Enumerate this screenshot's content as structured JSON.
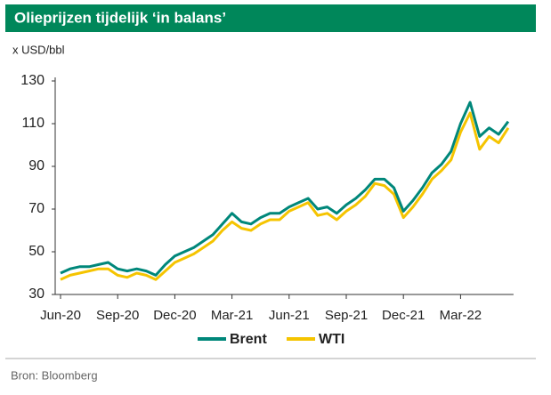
{
  "chart_data": {
    "type": "line",
    "title": "Olieprijzen tijdelijk ‘in balans’",
    "y_label": "x USD/bbl",
    "source": "Bron: Bloomberg",
    "categories": [
      "Jun-20",
      null,
      null,
      null,
      null,
      null,
      "Sep-20",
      null,
      null,
      null,
      null,
      null,
      "Dec-20",
      null,
      null,
      null,
      null,
      null,
      "Mar-21",
      null,
      null,
      null,
      null,
      null,
      "Jun-21",
      null,
      null,
      null,
      null,
      null,
      "Sep-21",
      null,
      null,
      null,
      null,
      null,
      "Dec-21",
      null,
      null,
      null,
      null,
      null,
      "Mar-22",
      null,
      null,
      null,
      null,
      null
    ],
    "series": [
      {
        "name": "Brent",
        "color": "#00877a",
        "values": [
          40,
          42,
          43,
          43,
          44,
          45,
          42,
          41,
          42,
          41,
          39,
          44,
          48,
          50,
          52,
          55,
          58,
          63,
          68,
          64,
          63,
          66,
          68,
          68,
          71,
          73,
          75,
          70,
          71,
          68,
          72,
          75,
          79,
          84,
          84,
          80,
          69,
          74,
          80,
          87,
          91,
          97,
          110,
          120,
          104,
          108,
          105,
          111
        ]
      },
      {
        "name": "WTI",
        "color": "#f5c400",
        "values": [
          37,
          39,
          40,
          41,
          42,
          42,
          39,
          38,
          40,
          39,
          37,
          41,
          45,
          47,
          49,
          52,
          55,
          60,
          64,
          61,
          60,
          63,
          65,
          65,
          69,
          71,
          73,
          67,
          68,
          65,
          69,
          72,
          76,
          82,
          81,
          77,
          66,
          71,
          77,
          84,
          88,
          93,
          106,
          115,
          98,
          104,
          101,
          108
        ]
      }
    ],
    "ylim": [
      30,
      130
    ],
    "yticks": [
      30,
      50,
      70,
      90,
      110,
      130
    ],
    "legend": "bottom"
  }
}
